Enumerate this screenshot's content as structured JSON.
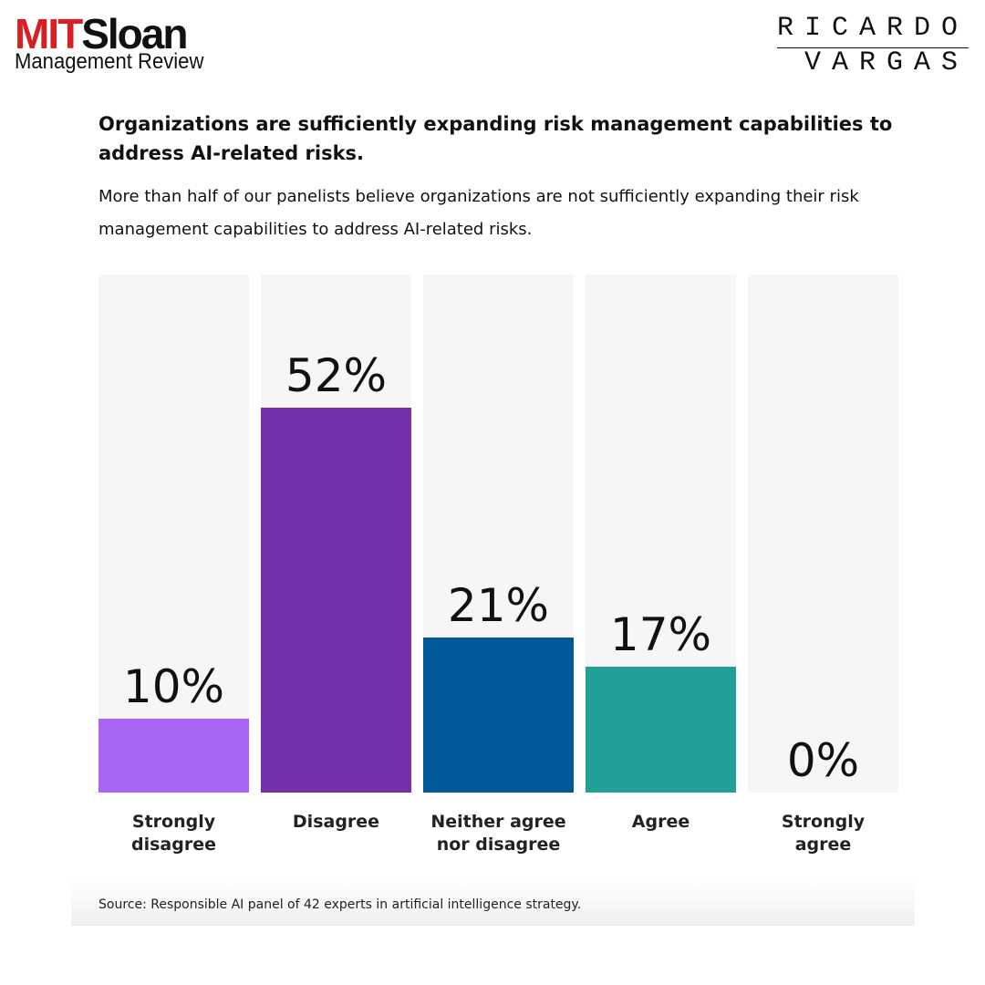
{
  "branding": {
    "mit": "MIT",
    "sloan": "Sloan",
    "review": "Management Review",
    "author_first": "RICARDO",
    "author_last": "VARGAS"
  },
  "chart_data": {
    "type": "bar",
    "title": "Organizations are sufficiently expanding risk management capabilities to address AI-related risks.",
    "subtitle": "More than half of our panelists believe organizations are not sufficiently expanding their risk management capabilities to address AI-related risks.",
    "categories": [
      "Strongly disagree",
      "Disagree",
      "Neither agree nor disagree",
      "Agree",
      "Strongly agree"
    ],
    "values": [
      10,
      52,
      21,
      17,
      0
    ],
    "value_labels": [
      "10%",
      "52%",
      "21%",
      "17%",
      "0%"
    ],
    "colors": [
      "#a866f2",
      "#7530ac",
      "#03589a",
      "#22a097",
      "#a866f2"
    ],
    "ylim": [
      0,
      70
    ],
    "source": "Source: Responsible AI panel of 42 experts in artificial intelligence strategy."
  }
}
